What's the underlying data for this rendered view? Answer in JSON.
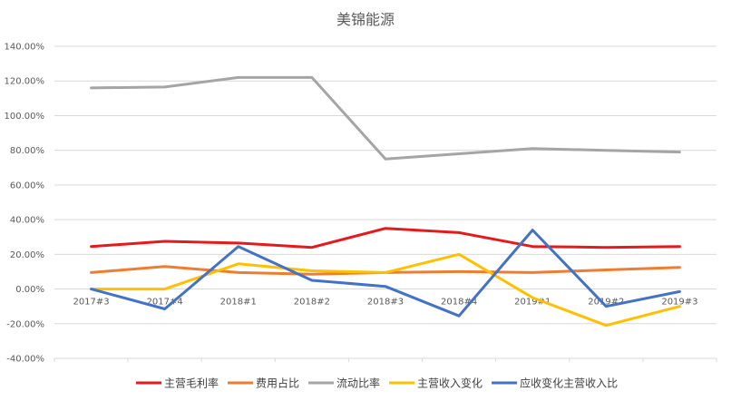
{
  "chart_data": {
    "type": "line",
    "title": "美锦能源",
    "categories": [
      "2017#3",
      "2017#4",
      "2018#1",
      "2018#2",
      "2018#3",
      "2018#4",
      "2019#1",
      "2019#2",
      "2019#3"
    ],
    "ylim": [
      -0.4,
      1.4
    ],
    "yticks": [
      -0.4,
      -0.2,
      0,
      0.2,
      0.4,
      0.6,
      0.8,
      1.0,
      1.2,
      1.4
    ],
    "ytick_labels": [
      "-40.00%",
      "-20.00%",
      "0.00%",
      "20.00%",
      "40.00%",
      "60.00%",
      "80.00%",
      "100.00%",
      "120.00%",
      "140.00%"
    ],
    "grid": true,
    "legend_position": "bottom",
    "series": [
      {
        "name": "主营毛利率",
        "color": "#e41a1c",
        "values": [
          0.245,
          0.275,
          0.265,
          0.24,
          0.35,
          0.325,
          0.245,
          0.24,
          0.245
        ]
      },
      {
        "name": "费用占比",
        "color": "#ed7d31",
        "values": [
          0.095,
          0.13,
          0.095,
          0.085,
          0.095,
          0.1,
          0.095,
          0.11,
          0.125
        ]
      },
      {
        "name": "流动比率",
        "color": "#a5a5a5",
        "values": [
          1.16,
          1.165,
          1.22,
          1.22,
          0.75,
          0.78,
          0.81,
          0.8,
          0.79
        ]
      },
      {
        "name": "主营收入变化",
        "color": "#ffc000",
        "values": [
          0.0,
          0.0,
          0.145,
          0.105,
          0.095,
          0.2,
          -0.05,
          -0.21,
          -0.1
        ]
      },
      {
        "name": "应收变化主营收入比",
        "color": "#4472c4",
        "values": [
          0.0,
          -0.115,
          0.245,
          0.05,
          0.015,
          -0.155,
          0.34,
          -0.1,
          -0.015
        ]
      }
    ]
  }
}
